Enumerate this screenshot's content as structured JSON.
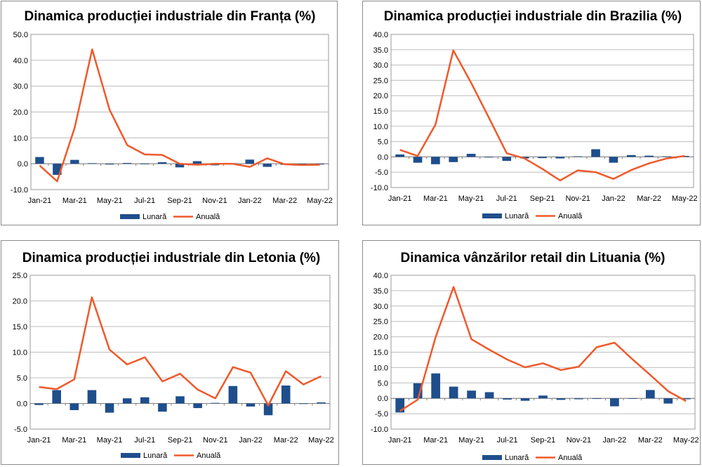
{
  "chart_data": [
    {
      "type": "bar+line",
      "title": "Dinamica producției industriale din Franța (%)",
      "categories": [
        "Jan-21",
        "Feb-21",
        "Mar-21",
        "Apr-21",
        "May-21",
        "Jun-21",
        "Jul-21",
        "Aug-21",
        "Sep-21",
        "Oct-21",
        "Nov-21",
        "Dec-21",
        "Jan-22",
        "Feb-22",
        "Mar-22",
        "Apr-22",
        "May-22"
      ],
      "x_tick_labels": [
        "Jan-21",
        "Mar-21",
        "May-21",
        "Jul-21",
        "Sep-21",
        "Nov-21",
        "Jan-22",
        "Mar-22",
        "May-22"
      ],
      "ylim": [
        -10,
        50
      ],
      "y_ticks": [
        -10,
        0,
        10,
        20,
        30,
        40,
        50
      ],
      "y_tick_labels": [
        "-10.0",
        "0.0",
        "10.0",
        "20.0",
        "30.0",
        "40.0",
        "50.0"
      ],
      "grid": true,
      "legend_position": "bottom",
      "series": [
        {
          "name": "Lunară",
          "kind": "bar",
          "color": "#1f4e8c",
          "values": [
            2.6,
            -4.3,
            1.5,
            0.2,
            -0.3,
            0.3,
            -0.2,
            0.6,
            -1.4,
            1.0,
            -0.6,
            0.0,
            1.6,
            -1.2,
            -0.4,
            -0.2,
            -0.3
          ]
        },
        {
          "name": "Anuală",
          "kind": "line",
          "color": "#f0592a",
          "values": [
            -0.7,
            -6.8,
            14.0,
            44.2,
            20.8,
            7.2,
            3.6,
            3.4,
            0.0,
            -0.4,
            0.0,
            0.0,
            -1.2,
            2.1,
            -0.2,
            -0.5,
            -0.4
          ]
        }
      ]
    },
    {
      "type": "bar+line",
      "title": "Dinamica producției industriale din Brazilia (%)",
      "categories": [
        "Jan-21",
        "Feb-21",
        "Mar-21",
        "Apr-21",
        "May-21",
        "Jun-21",
        "Jul-21",
        "Aug-21",
        "Sep-21",
        "Oct-21",
        "Nov-21",
        "Dec-21",
        "Jan-22",
        "Feb-22",
        "Mar-22",
        "Apr-22",
        "May-22"
      ],
      "x_tick_labels": [
        "Jan-21",
        "Mar-21",
        "May-21",
        "Jul-21",
        "Sep-21",
        "Nov-21",
        "Jan-22",
        "Mar-22",
        "May-22"
      ],
      "ylim": [
        -10,
        40
      ],
      "y_ticks": [
        -10,
        -5,
        0,
        5,
        10,
        15,
        20,
        25,
        30,
        35,
        40
      ],
      "y_tick_labels": [
        "-10.0",
        "-5.0",
        "0.0",
        "5.0",
        "10.0",
        "15.0",
        "20.0",
        "25.0",
        "30.0",
        "35.0",
        "40.0"
      ],
      "grid": true,
      "legend_position": "bottom",
      "series": [
        {
          "name": "Lunară",
          "kind": "bar",
          "color": "#1f4e8c",
          "values": [
            0.8,
            -1.9,
            -2.4,
            -1.7,
            1.0,
            -0.2,
            -1.3,
            -0.5,
            -0.4,
            -0.5,
            0.1,
            2.5,
            -1.9,
            0.6,
            0.4,
            0.1,
            0.3
          ]
        },
        {
          "name": "Anuală",
          "kind": "line",
          "color": "#f0592a",
          "values": [
            2.3,
            0.3,
            10.6,
            34.8,
            24.2,
            12.8,
            1.2,
            -0.5,
            -3.9,
            -7.7,
            -4.4,
            -5.0,
            -7.2,
            -4.3,
            -2.1,
            -0.5,
            0.3
          ]
        }
      ]
    },
    {
      "type": "bar+line",
      "title": "Dinamica producției industriale din Letonia (%)",
      "categories": [
        "Jan-21",
        "Feb-21",
        "Mar-21",
        "Apr-21",
        "May-21",
        "Jun-21",
        "Jul-21",
        "Aug-21",
        "Sep-21",
        "Oct-21",
        "Nov-21",
        "Dec-21",
        "Jan-22",
        "Feb-22",
        "Mar-22",
        "Apr-22",
        "May-22"
      ],
      "x_tick_labels": [
        "Jan-21",
        "Mar-21",
        "May-21",
        "Jul-21",
        "Sep-21",
        "Nov-21",
        "Jan-22",
        "Mar-22",
        "May-22"
      ],
      "ylim": [
        -5,
        25
      ],
      "y_ticks": [
        -5,
        0,
        5,
        10,
        15,
        20,
        25
      ],
      "y_tick_labels": [
        "-5.0",
        "0.0",
        "5.0",
        "10.0",
        "15.0",
        "20.0",
        "25.0"
      ],
      "grid": true,
      "legend_position": "bottom",
      "series": [
        {
          "name": "Lunară",
          "kind": "bar",
          "color": "#1f4e8c",
          "values": [
            -0.3,
            2.6,
            -1.3,
            2.6,
            -1.8,
            1.0,
            1.2,
            -1.6,
            1.4,
            -0.9,
            0.1,
            3.4,
            -0.6,
            -2.3,
            3.5,
            -0.1,
            0.2
          ]
        },
        {
          "name": "Anuală",
          "kind": "line",
          "color": "#f0592a",
          "values": [
            3.2,
            2.8,
            4.7,
            20.7,
            10.5,
            7.6,
            9.0,
            4.3,
            5.8,
            2.7,
            1.0,
            7.1,
            6.0,
            -0.4,
            6.3,
            3.7,
            5.3
          ]
        }
      ]
    },
    {
      "type": "bar+line",
      "title": "Dinamica vânzărilor retail din Lituania (%)",
      "categories": [
        "Jan-21",
        "Feb-21",
        "Mar-21",
        "Apr-21",
        "May-21",
        "Jun-21",
        "Jul-21",
        "Aug-21",
        "Sep-21",
        "Oct-21",
        "Nov-21",
        "Dec-21",
        "Jan-22",
        "Feb-22",
        "Mar-22",
        "Apr-22",
        "May-22"
      ],
      "x_tick_labels": [
        "Jan-21",
        "Mar-21",
        "May-21",
        "Jul-21",
        "Sep-21",
        "Nov-21",
        "Jan-22",
        "Mar-22",
        "May-22"
      ],
      "ylim": [
        -10,
        40
      ],
      "y_ticks": [
        -10,
        -5,
        0,
        5,
        10,
        15,
        20,
        25,
        30,
        35,
        40
      ],
      "y_tick_labels": [
        "-10.0",
        "-5.0",
        "0.0",
        "5.0",
        "10.0",
        "15.0",
        "20.0",
        "25.0",
        "30.0",
        "35.0",
        "40.0"
      ],
      "grid": true,
      "legend_position": "bottom",
      "series": [
        {
          "name": "Lunară",
          "kind": "bar",
          "color": "#1f4e8c",
          "values": [
            -4.6,
            4.9,
            8.1,
            3.8,
            2.5,
            2.0,
            -0.4,
            -0.8,
            0.9,
            -0.5,
            -0.3,
            -0.2,
            -2.6,
            -0.1,
            2.7,
            -1.7,
            -0.3
          ]
        },
        {
          "name": "Anuală",
          "kind": "line",
          "color": "#f0592a",
          "values": [
            -4.1,
            -0.4,
            20.0,
            36.2,
            19.2,
            15.8,
            12.6,
            10.1,
            11.4,
            9.2,
            10.3,
            16.6,
            18.1,
            12.7,
            7.6,
            2.3,
            -0.9
          ]
        }
      ]
    }
  ]
}
